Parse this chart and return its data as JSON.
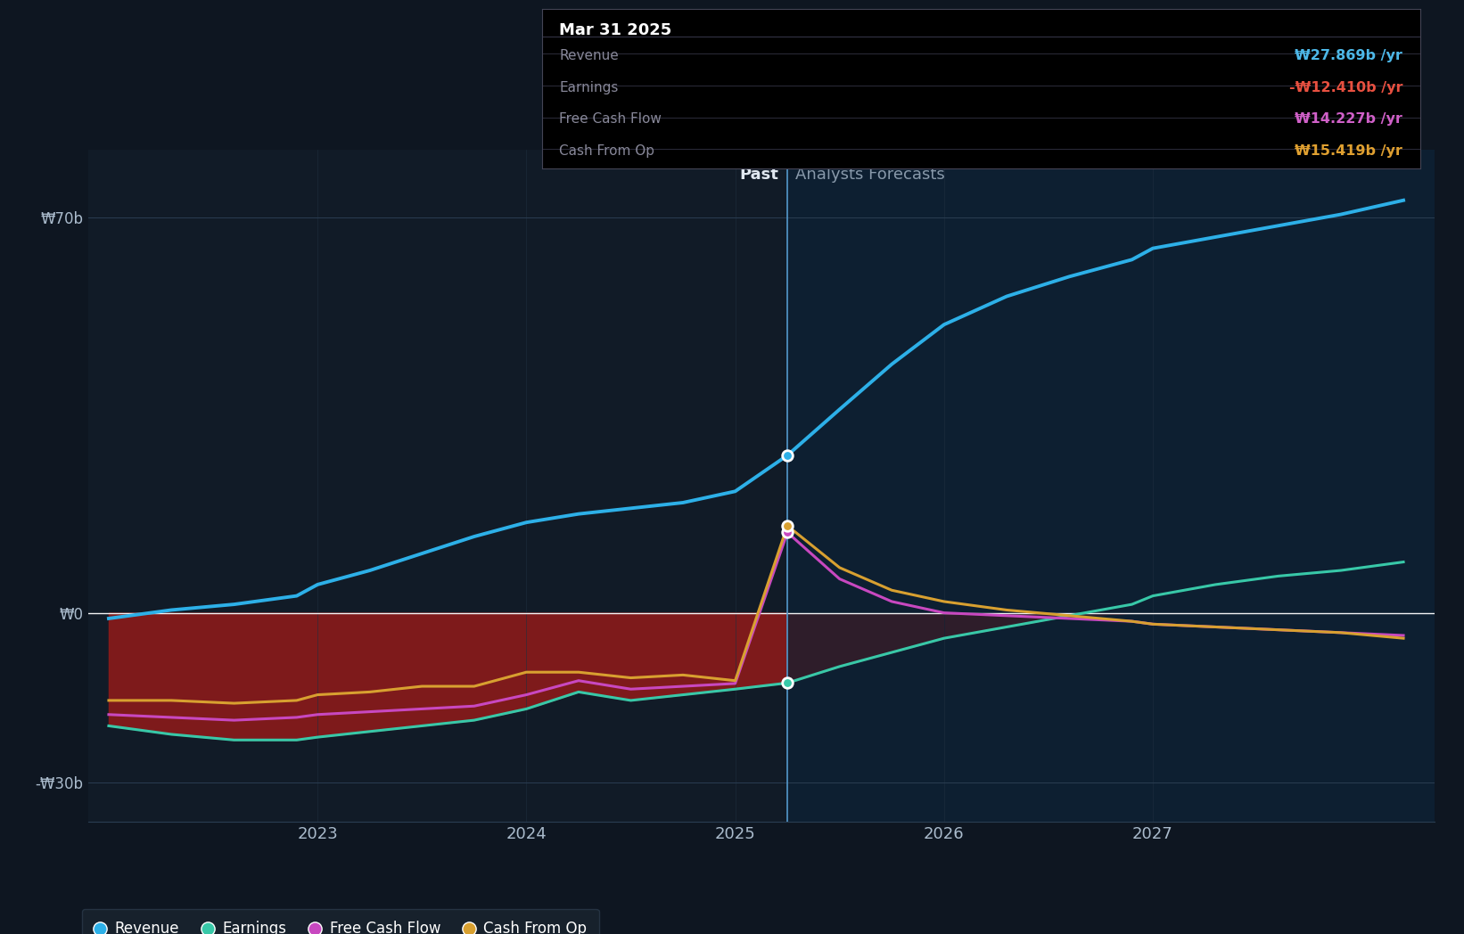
{
  "bg_color": "#0e1621",
  "past_bg_color": "#111b27",
  "forecast_bg_color": "#0d1e2e",
  "tooltip_title": "Mar 31 2025",
  "tooltip_rows": [
    {
      "label": "Revenue",
      "value": "₩27.869b /yr",
      "color": "#4db8e8"
    },
    {
      "label": "Earnings",
      "value": "-₩12.410b /yr",
      "color": "#e85040"
    },
    {
      "label": "Free Cash Flow",
      "value": "₩14.227b /yr",
      "color": "#d060c8"
    },
    {
      "label": "Cash From Op",
      "value": "₩15.419b /yr",
      "color": "#e0a030"
    }
  ],
  "past_label": "Past",
  "forecast_label": "Analysts Forecasts",
  "divider_x": 2025.25,
  "ytick_vals": [
    -30,
    0,
    70
  ],
  "ytick_labels": [
    "-₩30b",
    "₩0",
    "₩70b"
  ],
  "xtick_vals": [
    2023,
    2024,
    2025,
    2026,
    2027
  ],
  "ylim": [
    -37,
    82
  ],
  "xlim": [
    2021.9,
    2028.35
  ],
  "revenue_color": "#2db0e8",
  "earnings_color": "#38c8a8",
  "fcf_color": "#c848c0",
  "cashop_color": "#d8a030",
  "fill_neg_color": "#8b1a1a",
  "revenue_x": [
    2022.0,
    2022.3,
    2022.6,
    2022.9,
    2023.0,
    2023.25,
    2023.5,
    2023.75,
    2024.0,
    2024.25,
    2024.5,
    2024.75,
    2025.0,
    2025.25,
    2025.5,
    2025.75,
    2026.0,
    2026.3,
    2026.6,
    2026.9,
    2027.0,
    2027.3,
    2027.6,
    2027.9,
    2028.2
  ],
  "revenue_y": [
    -1.0,
    0.5,
    1.5,
    3.0,
    5.0,
    7.5,
    10.5,
    13.5,
    16.0,
    17.5,
    18.5,
    19.5,
    21.5,
    27.869,
    36.0,
    44.0,
    51.0,
    56.0,
    59.5,
    62.5,
    64.5,
    66.5,
    68.5,
    70.5,
    73.0
  ],
  "earnings_x": [
    2022.0,
    2022.3,
    2022.6,
    2022.9,
    2023.0,
    2023.25,
    2023.5,
    2023.75,
    2024.0,
    2024.25,
    2024.5,
    2024.75,
    2025.0,
    2025.25,
    2025.5,
    2025.75,
    2026.0,
    2026.3,
    2026.6,
    2026.9,
    2027.0,
    2027.3,
    2027.6,
    2027.9,
    2028.2
  ],
  "earnings_y": [
    -20.0,
    -21.5,
    -22.5,
    -22.5,
    -22.0,
    -21.0,
    -20.0,
    -19.0,
    -17.0,
    -14.0,
    -15.5,
    -14.5,
    -13.5,
    -12.41,
    -9.5,
    -7.0,
    -4.5,
    -2.5,
    -0.5,
    1.5,
    3.0,
    5.0,
    6.5,
    7.5,
    9.0
  ],
  "fcf_x": [
    2022.0,
    2022.3,
    2022.6,
    2022.9,
    2023.0,
    2023.25,
    2023.5,
    2023.75,
    2024.0,
    2024.25,
    2024.5,
    2024.75,
    2025.0,
    2025.25,
    2025.5,
    2025.75,
    2026.0,
    2026.3,
    2026.6,
    2026.9,
    2027.0,
    2027.3,
    2027.6,
    2027.9,
    2028.2
  ],
  "fcf_y": [
    -18.0,
    -18.5,
    -19.0,
    -18.5,
    -18.0,
    -17.5,
    -17.0,
    -16.5,
    -14.5,
    -12.0,
    -13.5,
    -13.0,
    -12.5,
    14.227,
    6.0,
    2.0,
    0.0,
    -0.5,
    -1.0,
    -1.5,
    -2.0,
    -2.5,
    -3.0,
    -3.5,
    -4.0
  ],
  "cashop_x": [
    2022.0,
    2022.3,
    2022.6,
    2022.9,
    2023.0,
    2023.25,
    2023.5,
    2023.75,
    2024.0,
    2024.25,
    2024.5,
    2024.75,
    2025.0,
    2025.25,
    2025.5,
    2025.75,
    2026.0,
    2026.3,
    2026.6,
    2026.9,
    2027.0,
    2027.3,
    2027.6,
    2027.9,
    2028.2
  ],
  "cashop_y": [
    -15.5,
    -15.5,
    -16.0,
    -15.5,
    -14.5,
    -14.0,
    -13.0,
    -13.0,
    -10.5,
    -10.5,
    -11.5,
    -11.0,
    -12.0,
    15.419,
    8.0,
    4.0,
    2.0,
    0.5,
    -0.5,
    -1.5,
    -2.0,
    -2.5,
    -3.0,
    -3.5,
    -4.5
  ]
}
